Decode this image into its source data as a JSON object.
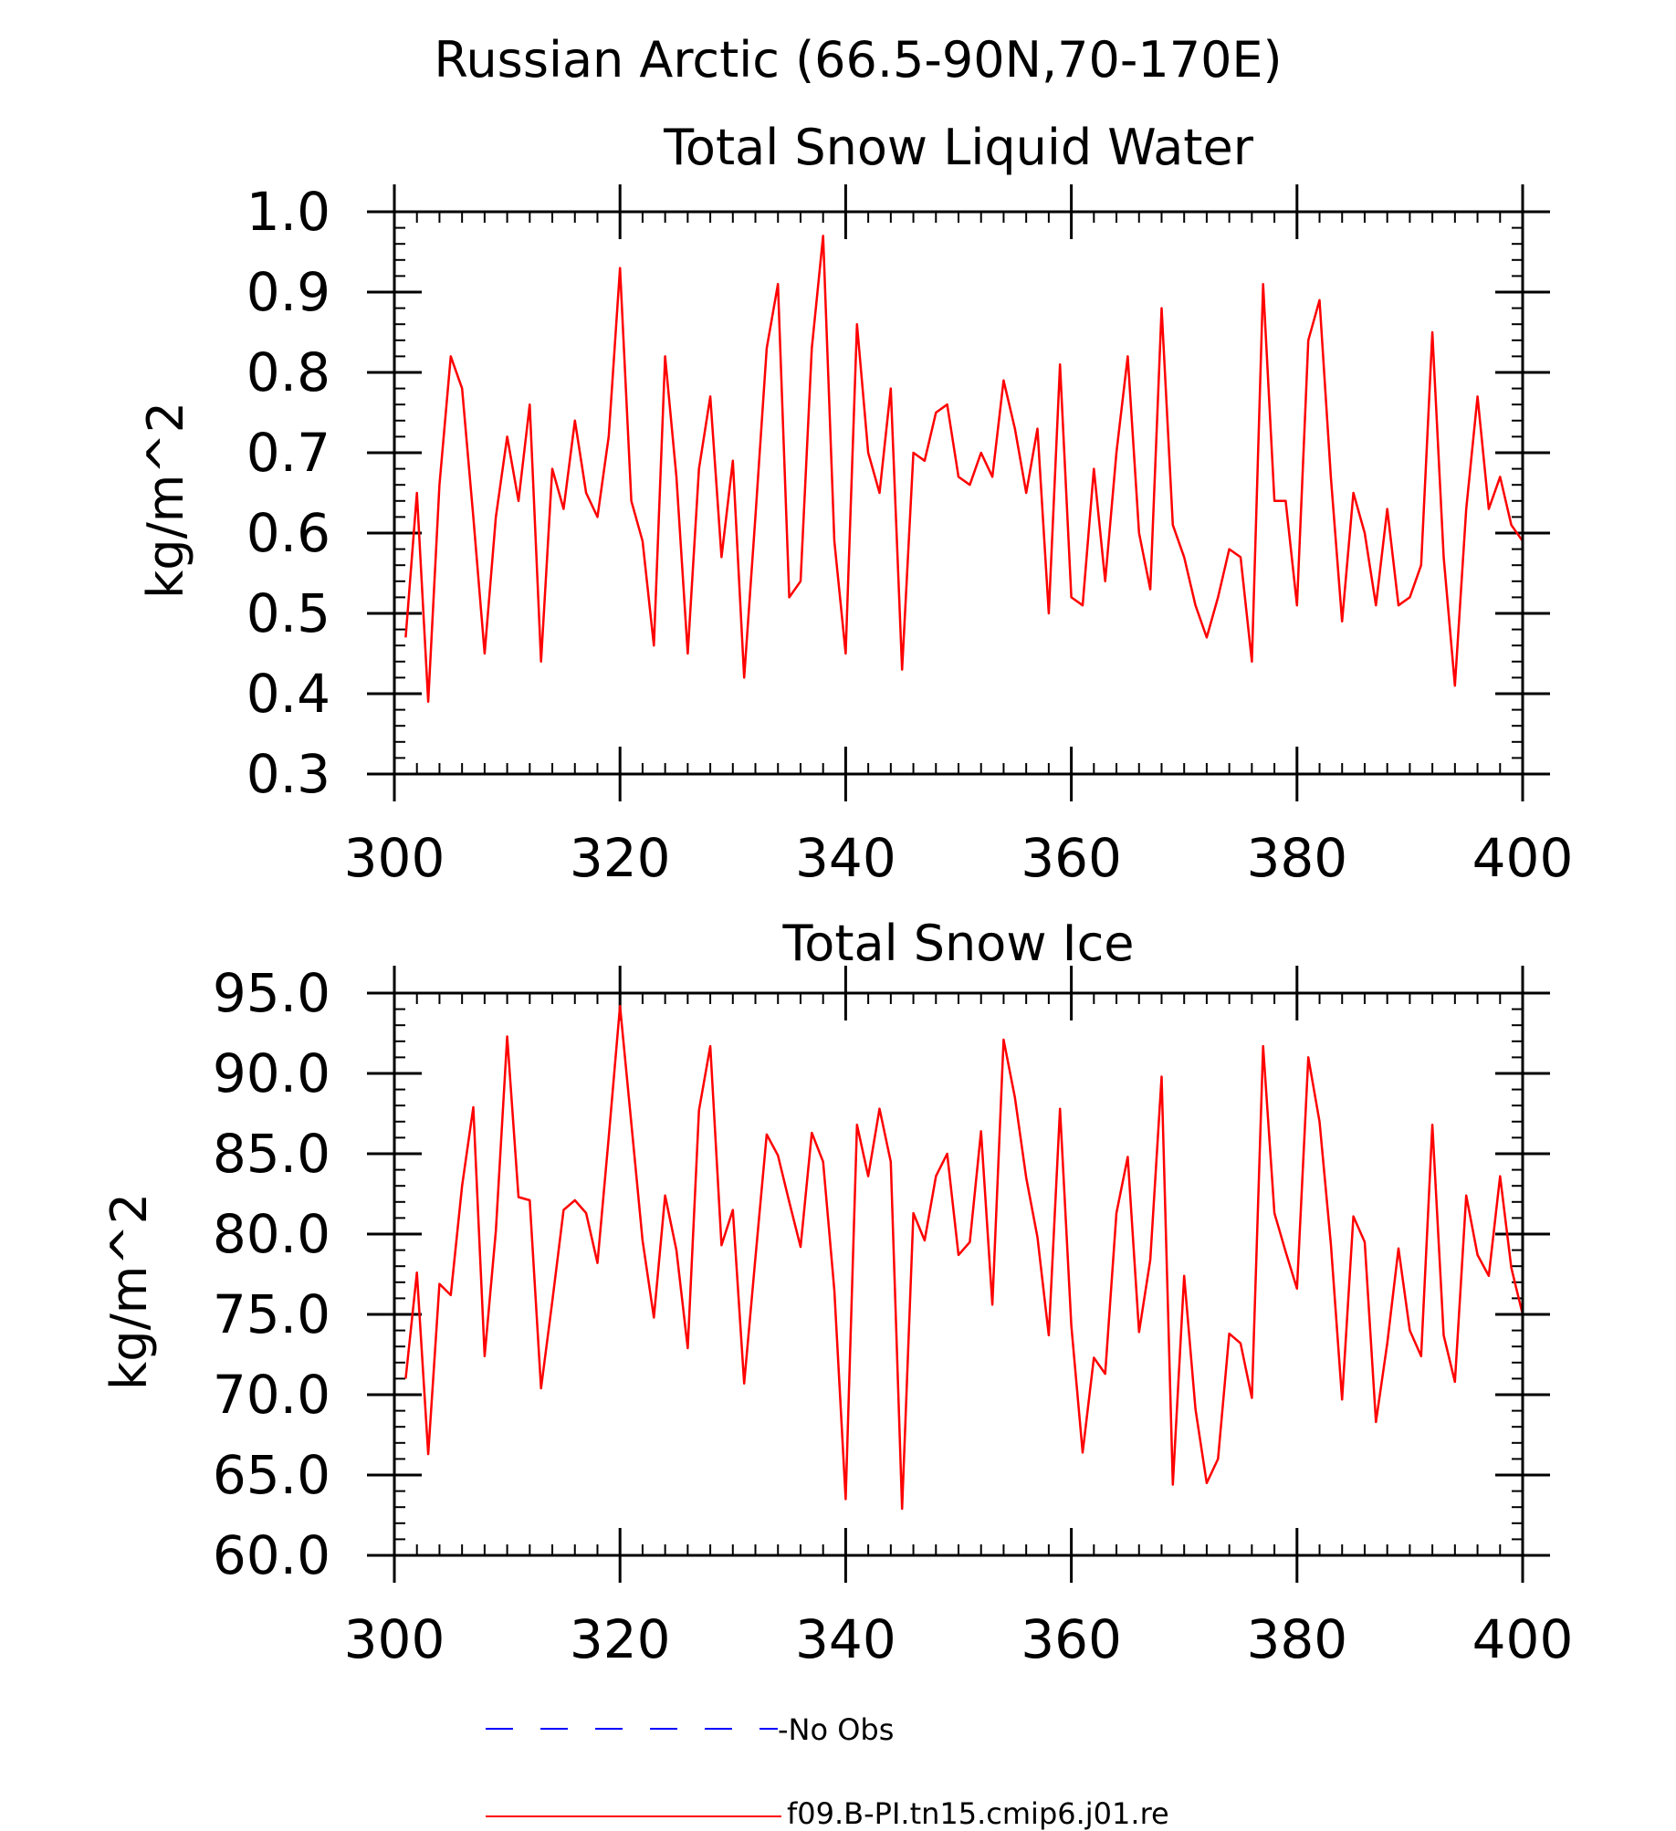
{
  "figure_title": "Russian Arctic (66.5-90N,70-170E)",
  "colors": {
    "model": "#ff0000",
    "obs": "#0000ff",
    "axis": "#000000"
  },
  "legend": {
    "position": "bottom-center",
    "entries": [
      {
        "label": "-No Obs",
        "color": "#0000ff",
        "style": "dashed"
      },
      {
        "label": "f09.B-PI.tn15.cmip6.j01.re",
        "color": "#ff0000",
        "style": "solid"
      }
    ]
  },
  "chart_data": [
    {
      "type": "line",
      "title": "Total Snow Liquid Water",
      "xlabel": "",
      "ylabel": "kg/m^2",
      "xlim": [
        300,
        400
      ],
      "ylim": [
        0.3,
        1.0
      ],
      "xticks": [
        300,
        320,
        340,
        360,
        380,
        400
      ],
      "yticks": [
        "0.3",
        "0.4",
        "0.5",
        "0.6",
        "0.7",
        "0.8",
        "0.9",
        "1.0"
      ],
      "grid": false,
      "x_start": 301,
      "series": [
        {
          "name": "f09.B-PI.tn15.cmip6.j01.re",
          "values": [
            0.47,
            0.65,
            0.39,
            0.66,
            0.82,
            0.78,
            0.62,
            0.45,
            0.62,
            0.72,
            0.64,
            0.76,
            0.44,
            0.68,
            0.63,
            0.74,
            0.65,
            0.62,
            0.72,
            0.93,
            0.64,
            0.59,
            0.46,
            0.82,
            0.67,
            0.45,
            0.68,
            0.77,
            0.57,
            0.69,
            0.42,
            0.62,
            0.83,
            0.91,
            0.52,
            0.54,
            0.83,
            0.97,
            0.59,
            0.45,
            0.86,
            0.7,
            0.65,
            0.78,
            0.43,
            0.7,
            0.69,
            0.75,
            0.76,
            0.67,
            0.66,
            0.7,
            0.67,
            0.79,
            0.73,
            0.65,
            0.73,
            0.5,
            0.81,
            0.52,
            0.51,
            0.68,
            0.54,
            0.7,
            0.82,
            0.6,
            0.53,
            0.88,
            0.61,
            0.57,
            0.51,
            0.47,
            0.52,
            0.58,
            0.57,
            0.44,
            0.91,
            0.64,
            0.64,
            0.51,
            0.84,
            0.89,
            0.67,
            0.49,
            0.65,
            0.6,
            0.51,
            0.63,
            0.51,
            0.52,
            0.56,
            0.85,
            0.57,
            0.41,
            0.63,
            0.77,
            0.63,
            0.67,
            0.61,
            0.59
          ]
        }
      ]
    },
    {
      "type": "line",
      "title": "Total Snow Ice",
      "xlabel": "",
      "ylabel": "kg/m^2",
      "xlim": [
        300,
        400
      ],
      "ylim": [
        60,
        95
      ],
      "xticks": [
        300,
        320,
        340,
        360,
        380,
        400
      ],
      "yticks": [
        "60.0",
        "65.0",
        "70.0",
        "75.0",
        "80.0",
        "85.0",
        "90.0",
        "95.0"
      ],
      "grid": false,
      "x_start": 301,
      "series": [
        {
          "name": "f09.B-PI.tn15.cmip6.j01.re",
          "values": [
            71.0,
            77.6,
            66.3,
            76.9,
            76.2,
            83.0,
            87.9,
            72.4,
            80.2,
            92.3,
            82.3,
            82.1,
            70.4,
            75.8,
            81.5,
            82.1,
            81.3,
            78.2,
            86.0,
            94.2,
            86.9,
            79.6,
            74.8,
            82.4,
            79.0,
            72.9,
            87.7,
            91.7,
            79.3,
            81.5,
            70.7,
            78.5,
            86.2,
            84.9,
            82.0,
            79.2,
            86.3,
            84.5,
            76.5,
            63.5,
            86.8,
            83.6,
            87.8,
            84.5,
            62.9,
            81.3,
            79.6,
            83.6,
            85.0,
            78.7,
            79.5,
            86.4,
            75.6,
            92.1,
            88.5,
            83.5,
            79.8,
            73.7,
            87.8,
            74.3,
            66.4,
            72.3,
            71.3,
            81.3,
            84.8,
            73.9,
            78.4,
            89.8,
            64.4,
            77.4,
            69.1,
            64.5,
            66.0,
            73.8,
            73.2,
            69.8,
            91.7,
            81.3,
            78.9,
            76.6,
            91.0,
            87.0,
            79.4,
            69.7,
            81.1,
            79.5,
            68.3,
            73.2,
            79.1,
            74.0,
            72.4,
            86.8,
            73.7,
            70.8,
            82.4,
            78.7,
            77.4,
            83.6,
            77.9,
            75.0
          ]
        }
      ]
    }
  ]
}
